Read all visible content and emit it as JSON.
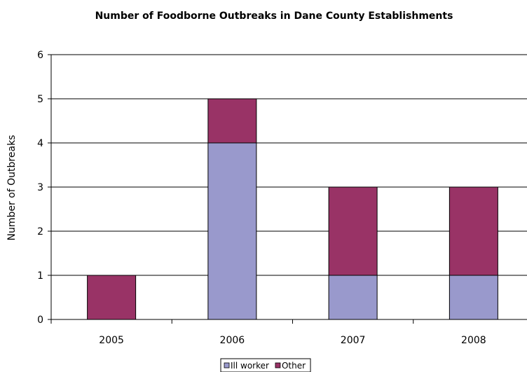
{
  "chart_data": {
    "type": "bar",
    "stacked": true,
    "title": "Number of Foodborne Outbreaks in Dane County Establishments",
    "xlabel": "",
    "ylabel": "Number of Outbreaks",
    "categories": [
      "2005",
      "2006",
      "2007",
      "2008"
    ],
    "ylim": [
      0,
      6
    ],
    "yticks": [
      0,
      1,
      2,
      3,
      4,
      5,
      6
    ],
    "grid": true,
    "legend_position": "bottom",
    "series": [
      {
        "name": "Ill worker",
        "values": [
          0,
          4,
          1,
          1
        ],
        "color": "#9999cc"
      },
      {
        "name": "Other",
        "values": [
          1,
          1,
          2,
          2
        ],
        "color": "#993366"
      }
    ]
  }
}
